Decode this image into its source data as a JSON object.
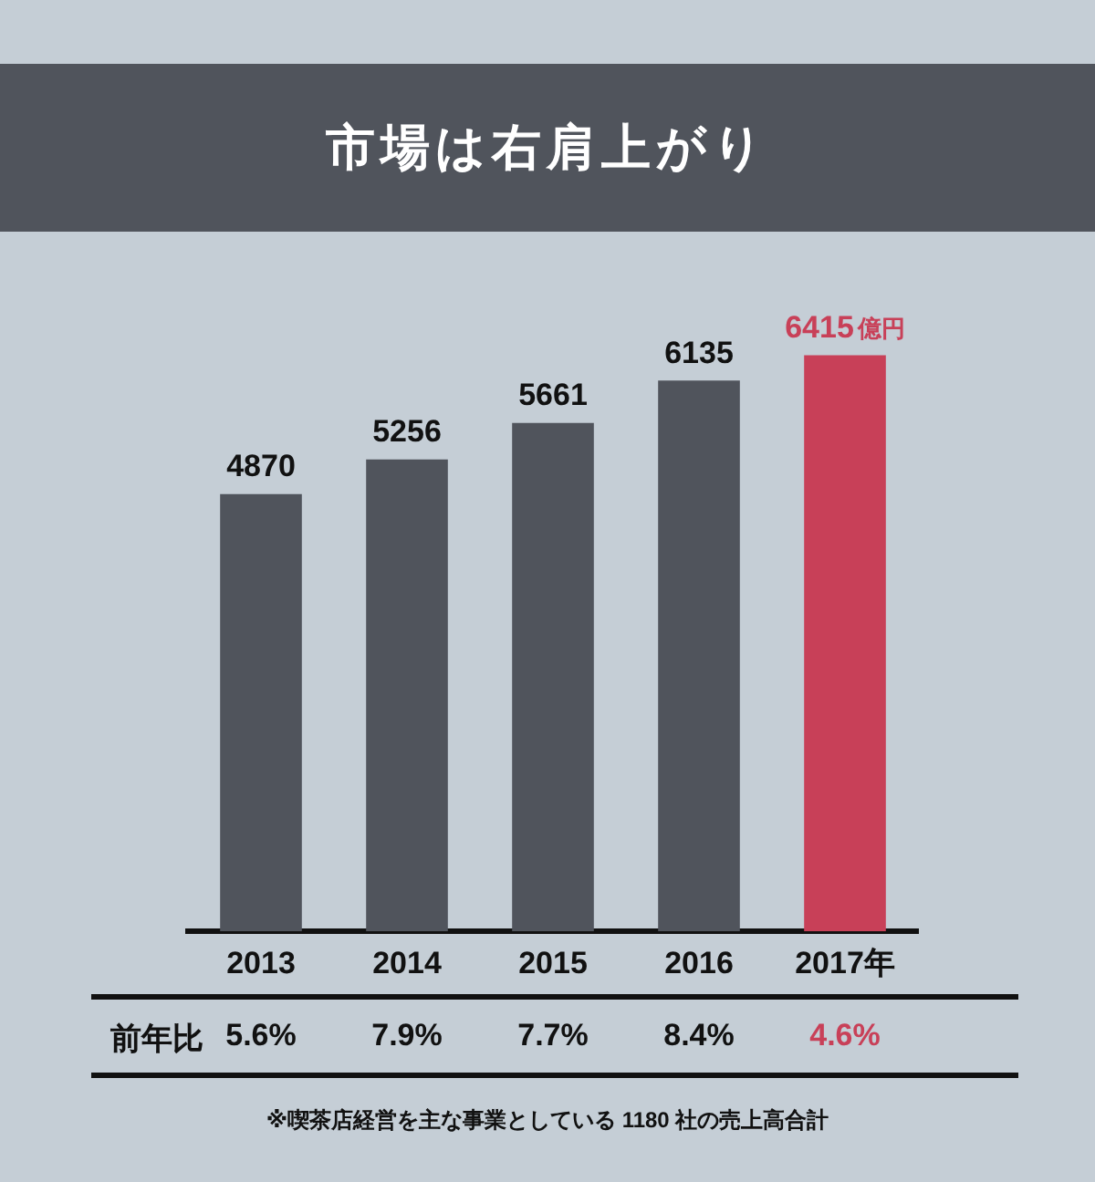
{
  "chart_data": {
    "type": "bar",
    "title": "市場は右肩上がり",
    "categories": [
      "2013",
      "2014",
      "2015",
      "2016",
      "2017年"
    ],
    "values": [
      4870,
      5256,
      5661,
      6135,
      6415
    ],
    "colors": [
      "#50545c",
      "#50545c",
      "#50545c",
      "#50545c",
      "#c84058"
    ],
    "value_labels": [
      "4870",
      "5256",
      "5661",
      "6135",
      "6415億円"
    ],
    "tick_labels": "x",
    "grid": false,
    "legend": false,
    "annotations": [
      "前年比",
      "5.6%",
      "7.9%",
      "7.7%",
      "8.4%",
      "4.6%",
      "※喫茶店経営を主な事業としている 1180 社の売上高合計"
    ]
  }
}
